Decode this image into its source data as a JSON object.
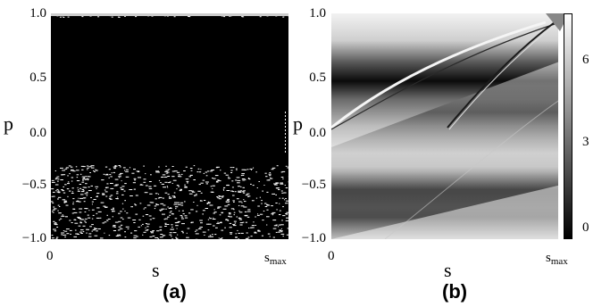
{
  "figure": {
    "panel_a": {
      "label": "(a)",
      "y_axis_label": "p",
      "x_axis_label": "s",
      "y_ticks": [
        "1.0",
        "0.5",
        "0.0",
        "−0.5",
        "−1.0"
      ],
      "x_start": "0",
      "x_end_main": "s",
      "x_end_sub": "max"
    },
    "panel_b": {
      "label": "(b)",
      "y_axis_label": "p",
      "x_axis_label": "s",
      "y_ticks": [
        "1.0",
        "0.5",
        "0.0",
        "−0.5",
        "−1.0"
      ],
      "x_start": "0",
      "x_end_main": "s",
      "x_end_sub": "max",
      "colorbar_ticks": [
        "6",
        "3",
        "0"
      ]
    }
  }
}
